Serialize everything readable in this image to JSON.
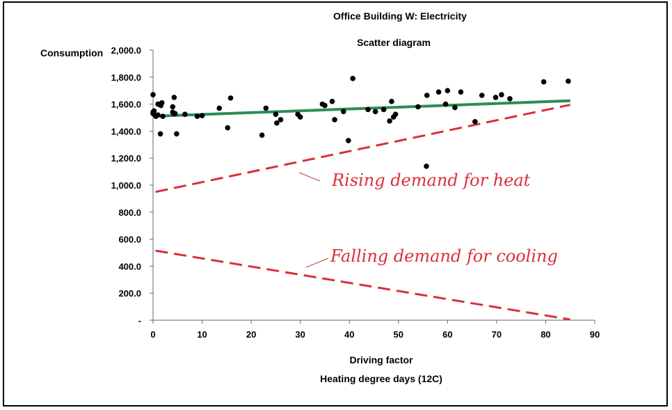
{
  "chart_data": {
    "type": "scatter",
    "title": "Office Building W: Electricity",
    "subtitle": "Scatter diagram",
    "ylabel": "Consumption",
    "xlabel": "Driving factor",
    "xlabel2": "Heating degree days (12C)",
    "xlim": [
      0,
      90
    ],
    "ylim": [
      0,
      2000
    ],
    "xticks": [
      0,
      10,
      20,
      30,
      40,
      50,
      60,
      70,
      80,
      90
    ],
    "xtick_labels": [
      "0",
      "10",
      "20",
      "30",
      "40",
      "50",
      "60",
      "70",
      "80",
      "90"
    ],
    "yticks": [
      0,
      200,
      400,
      600,
      800,
      1000,
      1200,
      1400,
      1600,
      1800,
      2000
    ],
    "ytick_labels": [
      "-",
      "200.0",
      "400.0",
      "600.0",
      "800.0",
      "1,000.0",
      "1,200.0",
      "1,400.0",
      "1,600.0",
      "1,800.0",
      "2,000.0"
    ],
    "grid": false,
    "colors": {
      "points": "#000000",
      "trend": "#2e8b57",
      "dashed": "#d9303a"
    },
    "points": [
      [
        0,
        1670
      ],
      [
        0,
        1540
      ],
      [
        0,
        1530
      ],
      [
        0.2,
        1550
      ],
      [
        0.4,
        1520
      ],
      [
        0.6,
        1510
      ],
      [
        1,
        1600
      ],
      [
        1,
        1520
      ],
      [
        1.5,
        1380
      ],
      [
        1.6,
        1590
      ],
      [
        1.8,
        1610
      ],
      [
        2,
        1510
      ],
      [
        4,
        1580
      ],
      [
        4,
        1540
      ],
      [
        4.2,
        1530
      ],
      [
        4.3,
        1650
      ],
      [
        4.5,
        1530
      ],
      [
        4.8,
        1380
      ],
      [
        6.5,
        1525
      ],
      [
        9,
        1510
      ],
      [
        10,
        1515
      ],
      [
        13.5,
        1570
      ],
      [
        15.2,
        1425
      ],
      [
        15.8,
        1645
      ],
      [
        22.2,
        1370
      ],
      [
        23,
        1570
      ],
      [
        25,
        1525
      ],
      [
        25.2,
        1460
      ],
      [
        26,
        1485
      ],
      [
        29.5,
        1525
      ],
      [
        30,
        1505
      ],
      [
        34.5,
        1600
      ],
      [
        35,
        1590
      ],
      [
        36.5,
        1620
      ],
      [
        37,
        1485
      ],
      [
        38.8,
        1545
      ],
      [
        39.8,
        1330
      ],
      [
        40.7,
        1790
      ],
      [
        43.8,
        1560
      ],
      [
        45.3,
        1545
      ],
      [
        47,
        1560
      ],
      [
        48.2,
        1475
      ],
      [
        48.6,
        1620
      ],
      [
        49,
        1505
      ],
      [
        49.4,
        1525
      ],
      [
        54,
        1580
      ],
      [
        55.7,
        1140
      ],
      [
        55.8,
        1665
      ],
      [
        58.2,
        1690
      ],
      [
        59.6,
        1600
      ],
      [
        60,
        1700
      ],
      [
        61.5,
        1575
      ],
      [
        62.7,
        1690
      ],
      [
        65.6,
        1470
      ],
      [
        67,
        1665
      ],
      [
        69.8,
        1650
      ],
      [
        71,
        1670
      ],
      [
        72.7,
        1640
      ],
      [
        79.6,
        1765
      ],
      [
        84.6,
        1770
      ]
    ],
    "trend_line": {
      "x": [
        0,
        85
      ],
      "y": [
        1510,
        1625
      ]
    },
    "dashed_lines": [
      {
        "x": [
          0.5,
          85
        ],
        "y": [
          950,
          1595
        ]
      },
      {
        "x": [
          0.5,
          85
        ],
        "y": [
          515,
          5
        ]
      }
    ],
    "annotations": [
      "Rising demand for heat",
      "Falling demand for cooling"
    ]
  }
}
